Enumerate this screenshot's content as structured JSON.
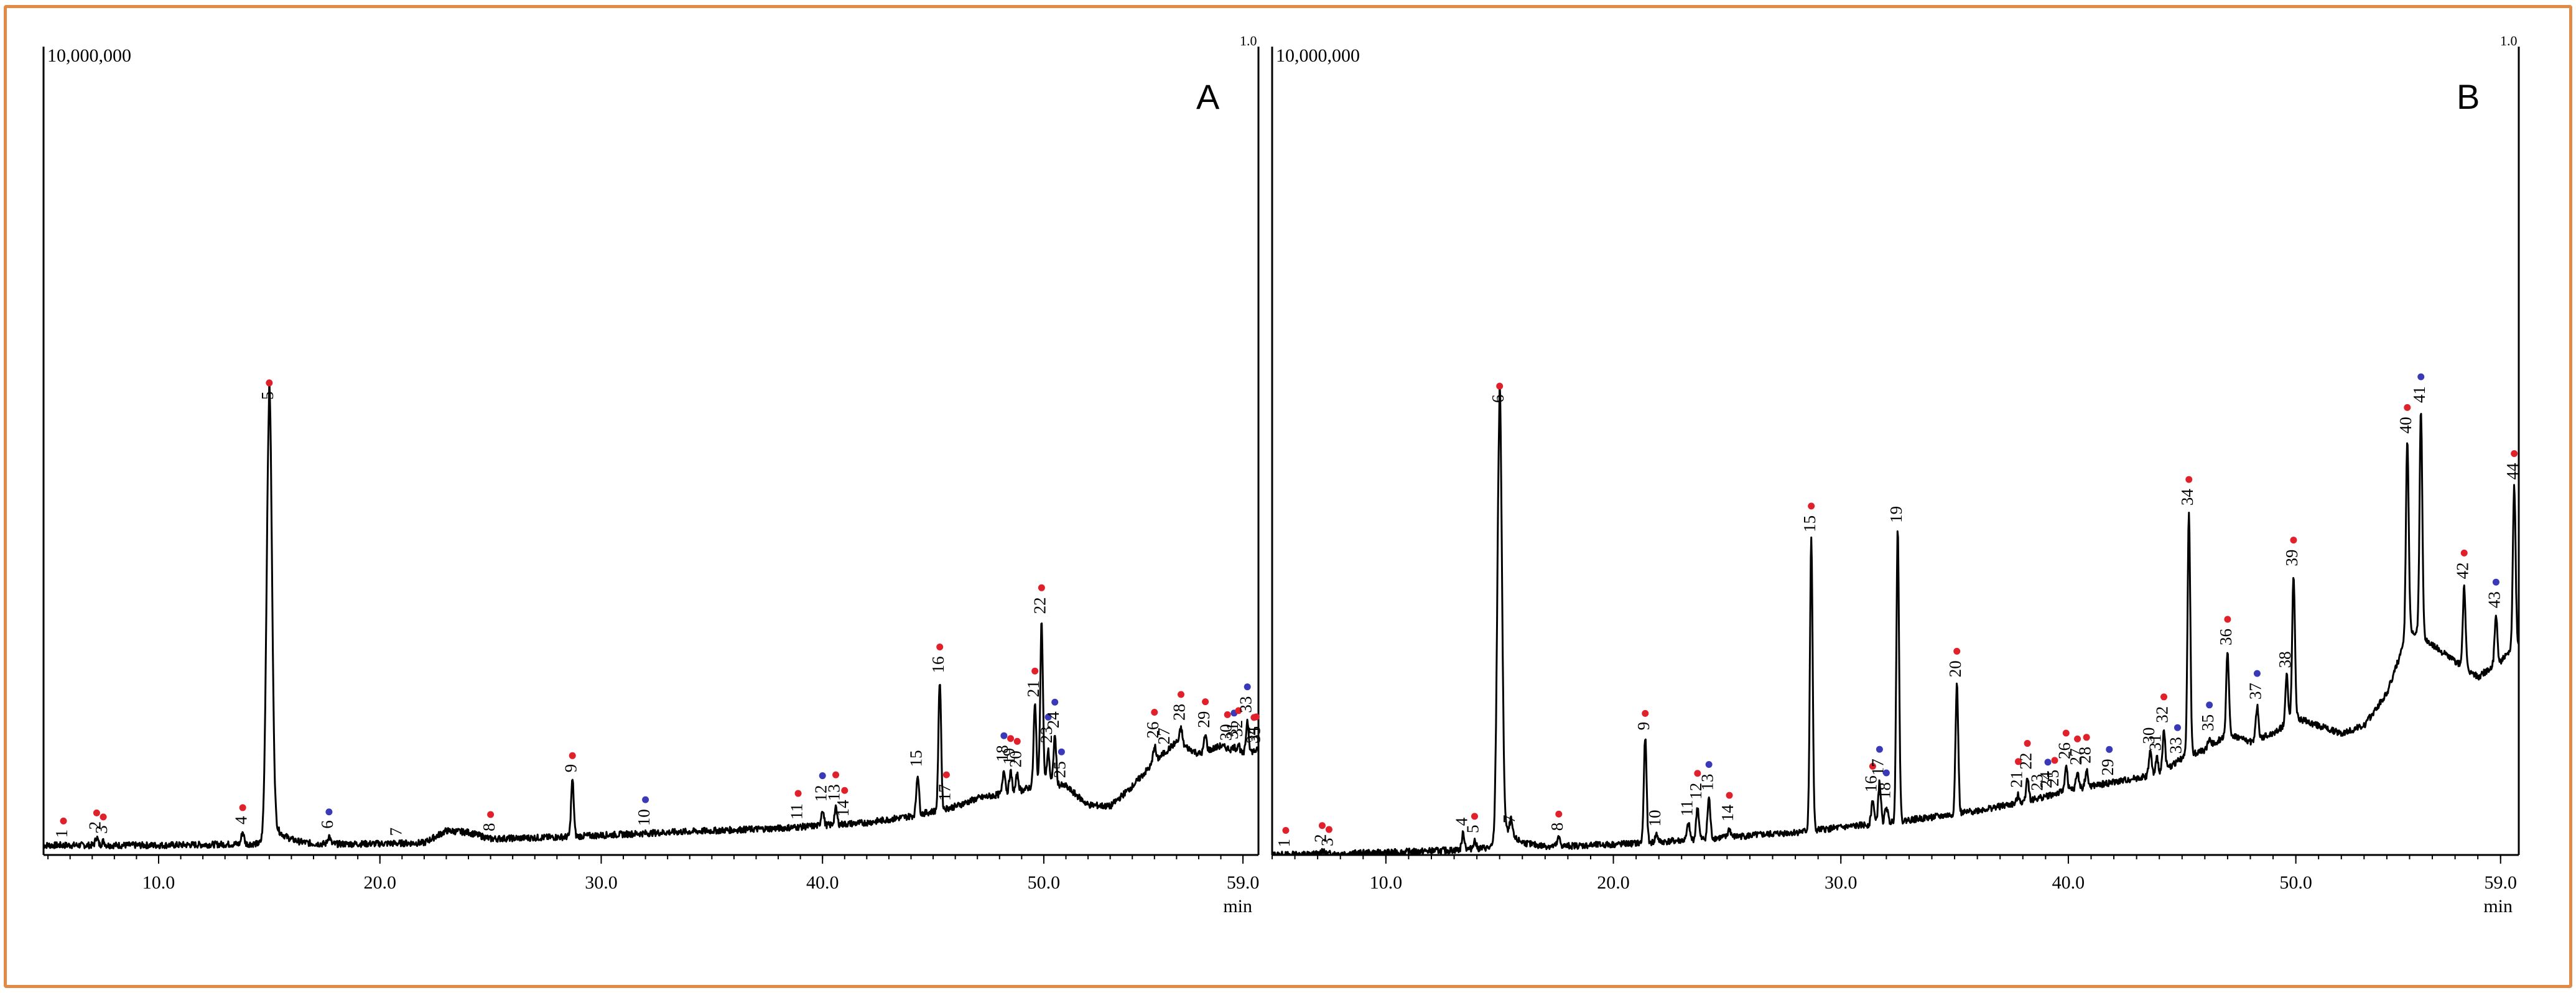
{
  "figure": {
    "frame_color": "#e08a45",
    "dot_colors": {
      "red": "#e0202a",
      "blue": "#3a3ab8"
    },
    "trace_color": "#000000"
  },
  "chart_data": [
    {
      "type": "line",
      "title": "",
      "panel_label": "A",
      "y_max_label": "10,000,000",
      "corner_mark": "1.0",
      "xlabel": "min",
      "ylabel": "",
      "x_ticks": [
        {
          "value": 10.0,
          "label": "10.0"
        },
        {
          "value": 20.0,
          "label": "20.0"
        },
        {
          "value": 30.0,
          "label": "30.0"
        },
        {
          "value": 40.0,
          "label": "40.0"
        },
        {
          "value": 50.0,
          "label": "50.0"
        },
        {
          "value": 59.0,
          "label": "59.0"
        }
      ],
      "xlim": [
        4.8,
        59.7
      ],
      "ylim": [
        0,
        1.0
      ],
      "grid": false,
      "baseline": [
        [
          4.8,
          0.012
        ],
        [
          10,
          0.012
        ],
        [
          15,
          0.014
        ],
        [
          17,
          0.013
        ],
        [
          20,
          0.014
        ],
        [
          22,
          0.015
        ],
        [
          23,
          0.03
        ],
        [
          24,
          0.028
        ],
        [
          25,
          0.02
        ],
        [
          28,
          0.022
        ],
        [
          33,
          0.028
        ],
        [
          38,
          0.033
        ],
        [
          42,
          0.04
        ],
        [
          44,
          0.048
        ],
        [
          46,
          0.06
        ],
        [
          47,
          0.07
        ],
        [
          48,
          0.075
        ],
        [
          49,
          0.08
        ],
        [
          50,
          0.09
        ],
        [
          51,
          0.085
        ],
        [
          52,
          0.062
        ],
        [
          53,
          0.06
        ],
        [
          54,
          0.085
        ],
        [
          55,
          0.115
        ],
        [
          56,
          0.14
        ],
        [
          57,
          0.125
        ],
        [
          58,
          0.135
        ],
        [
          59,
          0.125
        ],
        [
          59.7,
          0.13
        ]
      ],
      "peaks": [
        {
          "x": 5.7,
          "h": 0.0,
          "label": "1",
          "dot": "red"
        },
        {
          "x": 7.2,
          "h": 0.01,
          "label": "2",
          "dot": "red"
        },
        {
          "x": 7.5,
          "h": 0.005,
          "label": "3",
          "dot": "red"
        },
        {
          "x": 13.8,
          "h": 0.015,
          "label": "4",
          "dot": "red"
        },
        {
          "x": 15.0,
          "h": 0.54,
          "label": "5",
          "dot": "red",
          "w": 0.12
        },
        {
          "x": 17.7,
          "h": 0.01,
          "label": "6",
          "dot": "blue"
        },
        {
          "x": 20.8,
          "h": 0.0,
          "label": "7",
          "dot": null
        },
        {
          "x": 25.0,
          "h": 0.0,
          "label": "8",
          "dot": "red"
        },
        {
          "x": 28.7,
          "h": 0.07,
          "label": "9",
          "dot": "red"
        },
        {
          "x": 32.0,
          "h": 0.0,
          "label": "10",
          "dot": "blue"
        },
        {
          "x": 38.9,
          "h": 0.0,
          "label": "11",
          "dot": "red"
        },
        {
          "x": 40.0,
          "h": 0.02,
          "label": "12",
          "dot": "blue"
        },
        {
          "x": 40.6,
          "h": 0.02,
          "label": "13",
          "dot": "red"
        },
        {
          "x": 41.0,
          "h": 0.0,
          "label": "14",
          "dot": "red"
        },
        {
          "x": 44.3,
          "h": 0.05,
          "label": "15",
          "dot": null
        },
        {
          "x": 45.3,
          "h": 0.16,
          "label": "16",
          "dot": "red"
        },
        {
          "x": 45.6,
          "h": 0.0,
          "label": "17",
          "dot": "red"
        },
        {
          "x": 48.2,
          "h": 0.03,
          "label": "18",
          "dot": "blue"
        },
        {
          "x": 48.5,
          "h": 0.025,
          "label": "19",
          "dot": "red"
        },
        {
          "x": 48.8,
          "h": 0.02,
          "label": "20",
          "dot": "red"
        },
        {
          "x": 49.6,
          "h": 0.1,
          "label": "21",
          "dot": "red"
        },
        {
          "x": 49.9,
          "h": 0.2,
          "label": "22",
          "dot": "red"
        },
        {
          "x": 50.2,
          "h": 0.04,
          "label": "23",
          "dot": "blue"
        },
        {
          "x": 50.5,
          "h": 0.06,
          "label": "24",
          "dot": "blue"
        },
        {
          "x": 50.8,
          "h": 0.0,
          "label": "25",
          "dot": "blue"
        },
        {
          "x": 55.0,
          "h": 0.02,
          "label": "26",
          "dot": "red"
        },
        {
          "x": 55.5,
          "h": 0.0,
          "label": "27",
          "dot": null
        },
        {
          "x": 56.2,
          "h": 0.02,
          "label": "28",
          "dot": "red"
        },
        {
          "x": 57.3,
          "h": 0.02,
          "label": "29",
          "dot": "red"
        },
        {
          "x": 58.3,
          "h": 0.0,
          "label": "30",
          "dot": "red"
        },
        {
          "x": 58.6,
          "h": 0.005,
          "label": "31",
          "dot": "blue"
        },
        {
          "x": 58.8,
          "h": 0.01,
          "label": "32",
          "dot": "red"
        },
        {
          "x": 59.2,
          "h": 0.04,
          "label": "33",
          "dot": "blue"
        },
        {
          "x": 59.5,
          "h": 0.0,
          "label": "34",
          "dot": "red"
        },
        {
          "x": 59.6,
          "h": 0.0,
          "label": "35",
          "dot": "red"
        }
      ]
    },
    {
      "type": "line",
      "title": "",
      "panel_label": "B",
      "y_max_label": "10,000,000",
      "corner_mark": "1.0",
      "xlabel": "min",
      "ylabel": "",
      "x_ticks": [
        {
          "value": 10.0,
          "label": "10.0"
        },
        {
          "value": 20.0,
          "label": "20.0"
        },
        {
          "value": 30.0,
          "label": "30.0"
        },
        {
          "value": 40.0,
          "label": "40.0"
        },
        {
          "value": 50.0,
          "label": "50.0"
        },
        {
          "value": 59.0,
          "label": "59.0"
        }
      ],
      "xlim": [
        5.0,
        59.8
      ],
      "ylim": [
        0,
        1.0
      ],
      "grid": false,
      "baseline": [
        [
          5.0,
          0.0
        ],
        [
          10,
          0.003
        ],
        [
          13,
          0.006
        ],
        [
          15,
          0.01
        ],
        [
          17,
          0.01
        ],
        [
          20,
          0.013
        ],
        [
          22,
          0.016
        ],
        [
          25,
          0.022
        ],
        [
          28,
          0.028
        ],
        [
          32,
          0.04
        ],
        [
          35,
          0.05
        ],
        [
          38,
          0.065
        ],
        [
          40,
          0.08
        ],
        [
          42,
          0.09
        ],
        [
          44,
          0.1
        ],
        [
          45,
          0.12
        ],
        [
          46,
          0.13
        ],
        [
          47,
          0.15
        ],
        [
          48,
          0.14
        ],
        [
          49,
          0.15
        ],
        [
          50,
          0.17
        ],
        [
          51,
          0.16
        ],
        [
          52,
          0.15
        ],
        [
          53,
          0.16
        ],
        [
          54,
          0.2
        ],
        [
          55,
          0.28
        ],
        [
          56,
          0.26
        ],
        [
          57,
          0.24
        ],
        [
          58,
          0.22
        ],
        [
          59,
          0.24
        ],
        [
          59.8,
          0.26
        ]
      ],
      "peaks": [
        {
          "x": 5.6,
          "h": 0.0,
          "label": "1",
          "dot": "red"
        },
        {
          "x": 7.2,
          "h": 0.005,
          "label": "2",
          "dot": "red"
        },
        {
          "x": 7.5,
          "h": 0.0,
          "label": "3",
          "dot": "red"
        },
        {
          "x": 13.4,
          "h": 0.02,
          "label": "4",
          "dot": null
        },
        {
          "x": 13.9,
          "h": 0.01,
          "label": "5",
          "dot": "red"
        },
        {
          "x": 15.0,
          "h": 0.54,
          "label": "6",
          "dot": "red",
          "w": 0.1
        },
        {
          "x": 15.5,
          "h": 0.02,
          "label": "7",
          "dot": null
        },
        {
          "x": 17.6,
          "h": 0.01,
          "label": "8",
          "dot": "red"
        },
        {
          "x": 21.4,
          "h": 0.13,
          "label": "9",
          "dot": "red"
        },
        {
          "x": 21.9,
          "h": 0.01,
          "label": "10",
          "dot": null
        },
        {
          "x": 23.3,
          "h": 0.02,
          "label": "11",
          "dot": null
        },
        {
          "x": 23.7,
          "h": 0.04,
          "label": "12",
          "dot": "red"
        },
        {
          "x": 24.2,
          "h": 0.05,
          "label": "13",
          "dot": "blue"
        },
        {
          "x": 25.1,
          "h": 0.01,
          "label": "14",
          "dot": "red"
        },
        {
          "x": 28.7,
          "h": 0.36,
          "label": "15",
          "dot": "red"
        },
        {
          "x": 31.4,
          "h": 0.03,
          "label": "16",
          "dot": "red"
        },
        {
          "x": 31.7,
          "h": 0.05,
          "label": "17",
          "dot": "blue"
        },
        {
          "x": 32.0,
          "h": 0.02,
          "label": "18",
          "dot": "blue"
        },
        {
          "x": 32.5,
          "h": 0.36,
          "label": "19",
          "dot": null
        },
        {
          "x": 35.1,
          "h": 0.16,
          "label": "20",
          "dot": "red"
        },
        {
          "x": 37.8,
          "h": 0.01,
          "label": "21",
          "dot": "red"
        },
        {
          "x": 38.2,
          "h": 0.03,
          "label": "22",
          "dot": "red"
        },
        {
          "x": 38.7,
          "h": 0.0,
          "label": "23",
          "dot": null
        },
        {
          "x": 39.1,
          "h": 0.0,
          "label": "24",
          "dot": "blue"
        },
        {
          "x": 39.4,
          "h": 0.0,
          "label": "25",
          "dot": "red"
        },
        {
          "x": 39.9,
          "h": 0.03,
          "label": "26",
          "dot": "red"
        },
        {
          "x": 40.4,
          "h": 0.02,
          "label": "27",
          "dot": "red"
        },
        {
          "x": 40.8,
          "h": 0.02,
          "label": "28",
          "dot": "red"
        },
        {
          "x": 41.8,
          "h": 0.0,
          "label": "29",
          "dot": "blue"
        },
        {
          "x": 43.6,
          "h": 0.03,
          "label": "30",
          "dot": null
        },
        {
          "x": 43.9,
          "h": 0.02,
          "label": "31",
          "dot": null
        },
        {
          "x": 44.2,
          "h": 0.05,
          "label": "32",
          "dot": "red"
        },
        {
          "x": 44.8,
          "h": 0.0,
          "label": "33",
          "dot": "blue"
        },
        {
          "x": 45.3,
          "h": 0.3,
          "label": "34",
          "dot": "red"
        },
        {
          "x": 46.2,
          "h": 0.01,
          "label": "35",
          "dot": "blue"
        },
        {
          "x": 47.0,
          "h": 0.1,
          "label": "36",
          "dot": "red"
        },
        {
          "x": 48.3,
          "h": 0.04,
          "label": "37",
          "dot": "blue"
        },
        {
          "x": 49.6,
          "h": 0.06,
          "label": "38",
          "dot": null
        },
        {
          "x": 49.9,
          "h": 0.18,
          "label": "39",
          "dot": "red"
        },
        {
          "x": 54.9,
          "h": 0.24,
          "label": "40",
          "dot": "red"
        },
        {
          "x": 55.5,
          "h": 0.28,
          "label": "41",
          "dot": "blue"
        },
        {
          "x": 57.4,
          "h": 0.1,
          "label": "42",
          "dot": "red"
        },
        {
          "x": 58.8,
          "h": 0.06,
          "label": "43",
          "dot": "blue"
        },
        {
          "x": 59.6,
          "h": 0.2,
          "label": "44",
          "dot": "red"
        }
      ]
    }
  ]
}
